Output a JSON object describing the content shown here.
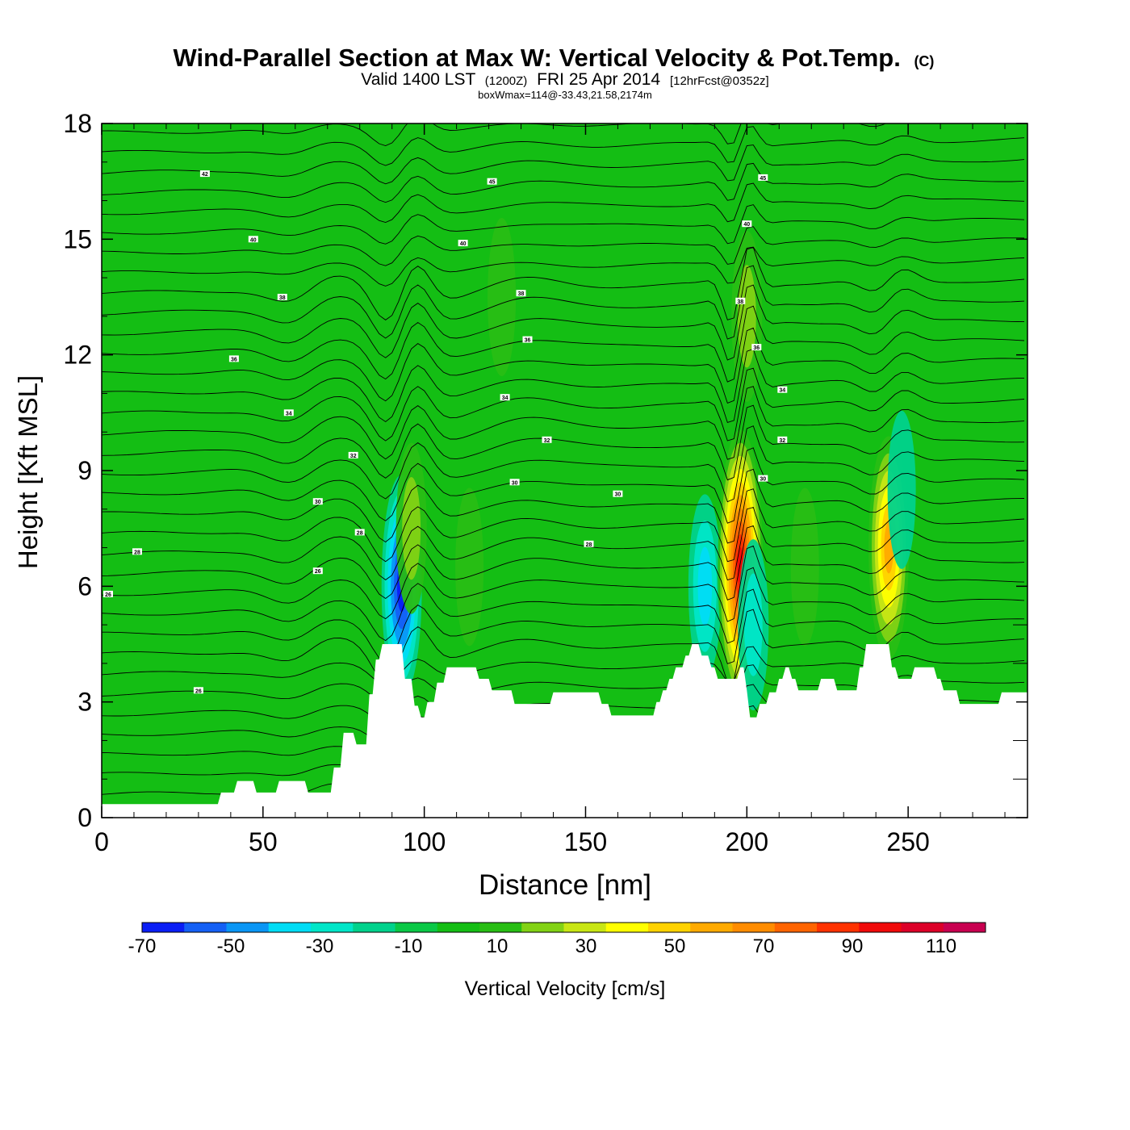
{
  "header": {
    "title": "Wind-Parallel Section at Max W: Vertical Velocity & Pot.Temp.",
    "copyright": "(C)",
    "valid_prefix": "Valid 1400 LST",
    "valid_z": "(1200Z)",
    "valid_date": "FRI 25 Apr 2014",
    "forecast": "[12hrFcst@0352z]",
    "boxwmax": "boxWmax=114@-33.43,21.58,2174m"
  },
  "chart_data": {
    "type": "heatmap",
    "title": "Wind-Parallel Section at Max W: Vertical Velocity & Pot.Temp.",
    "xlabel": "Distance [nm]",
    "ylabel": "Height [Kft MSL]",
    "xlim": [
      0,
      287
    ],
    "ylim": [
      0,
      18
    ],
    "x_ticks": [
      0,
      50,
      100,
      150,
      200,
      250
    ],
    "y_ticks": [
      0,
      3,
      6,
      9,
      12,
      15,
      18
    ],
    "fill_variable": "Vertical Velocity [cm/s]",
    "contour_variable": "Potential Temperature",
    "max_w": {
      "value": 114,
      "x": 198,
      "y": 6.5
    },
    "terrain": [
      [
        0,
        0.35
      ],
      [
        36,
        0.35
      ],
      [
        37,
        0.65
      ],
      [
        41,
        0.65
      ],
      [
        42,
        0.95
      ],
      [
        47,
        0.95
      ],
      [
        48,
        0.65
      ],
      [
        54,
        0.65
      ],
      [
        55,
        0.95
      ],
      [
        63,
        0.95
      ],
      [
        64,
        0.65
      ],
      [
        71,
        0.65
      ],
      [
        72,
        1.3
      ],
      [
        74,
        1.3
      ],
      [
        75,
        2.2
      ],
      [
        78,
        2.2
      ],
      [
        79,
        1.9
      ],
      [
        82,
        1.9
      ],
      [
        83,
        3.2
      ],
      [
        84,
        3.2
      ],
      [
        85,
        4.1
      ],
      [
        86,
        4.1
      ],
      [
        87,
        4.5
      ],
      [
        93,
        4.5
      ],
      [
        94,
        3.6
      ],
      [
        96,
        3.6
      ],
      [
        97,
        2.9
      ],
      [
        98,
        2.9
      ],
      [
        99,
        2.6
      ],
      [
        100,
        2.6
      ],
      [
        101,
        3.0
      ],
      [
        103,
        3.0
      ],
      [
        104,
        3.5
      ],
      [
        106,
        3.5
      ],
      [
        107,
        3.9
      ],
      [
        116,
        3.9
      ],
      [
        117,
        3.6
      ],
      [
        120,
        3.6
      ],
      [
        121,
        3.3
      ],
      [
        127,
        3.3
      ],
      [
        128,
        2.95
      ],
      [
        139,
        2.95
      ],
      [
        140,
        3.25
      ],
      [
        154,
        3.25
      ],
      [
        155,
        2.95
      ],
      [
        157,
        2.95
      ],
      [
        158,
        2.65
      ],
      [
        171,
        2.65
      ],
      [
        172,
        3.0
      ],
      [
        173,
        3.0
      ],
      [
        174,
        3.3
      ],
      [
        175,
        3.3
      ],
      [
        176,
        3.6
      ],
      [
        177,
        3.6
      ],
      [
        178,
        3.9
      ],
      [
        180,
        3.9
      ],
      [
        181,
        4.2
      ],
      [
        182,
        4.2
      ],
      [
        183,
        4.5
      ],
      [
        185,
        4.5
      ],
      [
        186,
        4.2
      ],
      [
        188,
        4.2
      ],
      [
        189,
        3.9
      ],
      [
        190,
        3.9
      ],
      [
        191,
        3.6
      ],
      [
        197,
        3.6
      ],
      [
        198,
        3.9
      ],
      [
        199,
        3.9
      ],
      [
        200,
        3.3
      ],
      [
        201,
        2.6
      ],
      [
        203,
        2.6
      ],
      [
        204,
        2.95
      ],
      [
        206,
        2.95
      ],
      [
        207,
        3.25
      ],
      [
        209,
        3.25
      ],
      [
        210,
        3.6
      ],
      [
        211,
        3.6
      ],
      [
        212,
        3.9
      ],
      [
        213,
        3.9
      ],
      [
        214,
        3.6
      ],
      [
        215,
        3.6
      ],
      [
        216,
        3.3
      ],
      [
        222,
        3.3
      ],
      [
        223,
        3.6
      ],
      [
        227,
        3.6
      ],
      [
        228,
        3.3
      ],
      [
        234,
        3.3
      ],
      [
        235,
        3.9
      ],
      [
        236,
        3.9
      ],
      [
        237,
        4.5
      ],
      [
        244,
        4.5
      ],
      [
        245,
        3.9
      ],
      [
        246,
        3.9
      ],
      [
        247,
        3.6
      ],
      [
        251,
        3.6
      ],
      [
        252,
        3.9
      ],
      [
        258,
        3.9
      ],
      [
        259,
        3.6
      ],
      [
        260,
        3.6
      ],
      [
        261,
        3.3
      ],
      [
        265,
        3.3
      ],
      [
        266,
        2.95
      ],
      [
        278,
        2.95
      ],
      [
        279,
        3.25
      ],
      [
        287,
        3.25
      ]
    ],
    "w_features": [
      {
        "x": 93,
        "y": 6,
        "w": -70
      },
      {
        "x": 96,
        "y": 7.5,
        "w": 30
      },
      {
        "x": 114,
        "y": 6.5,
        "w": 20
      },
      {
        "x": 124,
        "y": 13.5,
        "w": 20
      },
      {
        "x": 187,
        "y": 6,
        "w": -40
      },
      {
        "x": 198,
        "y": 6.5,
        "w": 114
      },
      {
        "x": 202,
        "y": 5,
        "w": -30
      },
      {
        "x": 200,
        "y": 13,
        "w": 30
      },
      {
        "x": 218,
        "y": 6.5,
        "w": 20
      },
      {
        "x": 244,
        "y": 7,
        "w": 70
      },
      {
        "x": 248,
        "y": 8.5,
        "w": -20
      }
    ],
    "contour_labels": [
      {
        "text": "42",
        "x": 32,
        "y": 16.7
      },
      {
        "text": "45",
        "x": 121,
        "y": 16.5
      },
      {
        "text": "45",
        "x": 205,
        "y": 16.6
      },
      {
        "text": "40",
        "x": 47,
        "y": 15.0
      },
      {
        "text": "40",
        "x": 112,
        "y": 14.9
      },
      {
        "text": "40",
        "x": 200,
        "y": 15.4
      },
      {
        "text": "38",
        "x": 56,
        "y": 13.5
      },
      {
        "text": "38",
        "x": 130,
        "y": 13.6
      },
      {
        "text": "38",
        "x": 198,
        "y": 13.4
      },
      {
        "text": "36",
        "x": 41,
        "y": 11.9
      },
      {
        "text": "36",
        "x": 132,
        "y": 12.4
      },
      {
        "text": "36",
        "x": 203,
        "y": 12.2
      },
      {
        "text": "34",
        "x": 58,
        "y": 10.5
      },
      {
        "text": "34",
        "x": 125,
        "y": 10.9
      },
      {
        "text": "34",
        "x": 211,
        "y": 11.1
      },
      {
        "text": "32",
        "x": 78,
        "y": 9.4
      },
      {
        "text": "32",
        "x": 138,
        "y": 9.8
      },
      {
        "text": "32",
        "x": 211,
        "y": 9.8
      },
      {
        "text": "30",
        "x": 67,
        "y": 8.2
      },
      {
        "text": "30",
        "x": 128,
        "y": 8.7
      },
      {
        "text": "30",
        "x": 160,
        "y": 8.4
      },
      {
        "text": "30",
        "x": 205,
        "y": 8.8
      },
      {
        "text": "28",
        "x": 80,
        "y": 7.4
      },
      {
        "text": "28",
        "x": 151,
        "y": 7.1
      },
      {
        "text": "28",
        "x": 11,
        "y": 6.9
      },
      {
        "text": "26",
        "x": 67,
        "y": 6.4
      },
      {
        "text": "26",
        "x": 2,
        "y": 5.8
      },
      {
        "text": "26",
        "x": 30,
        "y": 3.3
      }
    ]
  },
  "colorbar": {
    "label": "Vertical Velocity [cm/s]",
    "boundaries": [
      -70,
      -60,
      -50,
      -40,
      -30,
      -20,
      -10,
      0,
      10,
      20,
      30,
      40,
      50,
      60,
      70,
      80,
      90,
      100,
      110,
      120
    ],
    "tick_labels": [
      "-70",
      "-50",
      "-30",
      "-10",
      "10",
      "30",
      "50",
      "70",
      "90",
      "110"
    ],
    "colors": [
      "#0a1ef5",
      "#1460f5",
      "#0a96f5",
      "#00dcf5",
      "#00e6c8",
      "#00d28c",
      "#0ac846",
      "#14be14",
      "#28be14",
      "#82d214",
      "#c8e614",
      "#ffff00",
      "#ffd200",
      "#ffaa00",
      "#ff8c00",
      "#ff6400",
      "#ff3200",
      "#f00a0a",
      "#dc0028",
      "#c80050"
    ]
  }
}
